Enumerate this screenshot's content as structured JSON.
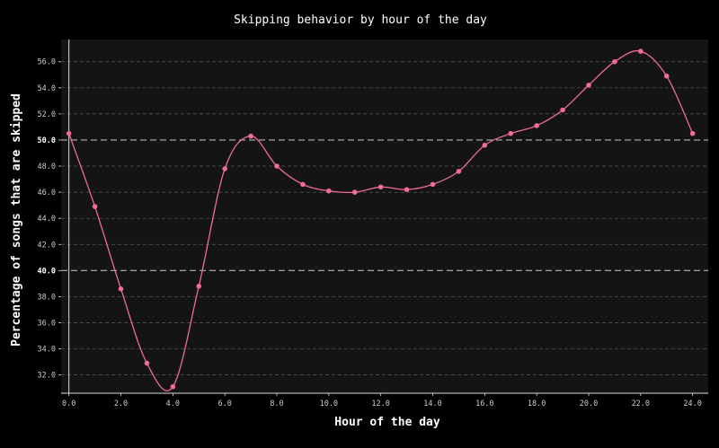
{
  "chart_data": {
    "type": "line",
    "title": "Skipping behavior by hour of the day",
    "xlabel": "Hour of the day",
    "ylabel": "Percentage of songs that are skipped",
    "xlim": [
      -0.3,
      24.6
    ],
    "ylim": [
      30.6,
      57.7
    ],
    "x_ticks": [
      0,
      2,
      4,
      6,
      8,
      10,
      12,
      14,
      16,
      18,
      20,
      22,
      24
    ],
    "x_tick_labels": [
      "0.0",
      "2.0",
      "4.0",
      "6.0",
      "8.0",
      "10.0",
      "12.0",
      "14.0",
      "16.0",
      "18.0",
      "20.0",
      "22.0",
      "24.0"
    ],
    "y_ticks": [
      32,
      34,
      36,
      38,
      40,
      42,
      44,
      46,
      48,
      50,
      52,
      54,
      56
    ],
    "y_tick_labels": [
      "32.0",
      "34.0",
      "36.0",
      "38.0",
      "40.0",
      "42.0",
      "44.0",
      "46.0",
      "48.0",
      "50.0",
      "52.0",
      "54.0",
      "56.0"
    ],
    "reference_lines_y": [
      40,
      50
    ],
    "grid": true,
    "colors": {
      "background": "#000000",
      "plot_background": "#141414",
      "series": "#f06c91",
      "grid": "#5a5a5a",
      "reference": "#b4b4b4",
      "axis": "#dddddd"
    },
    "series": [
      {
        "x": [
          0,
          1,
          2,
          3,
          4,
          5,
          6,
          7,
          8,
          9,
          10,
          11,
          12,
          13,
          14,
          15,
          16,
          17,
          18,
          19,
          20,
          21,
          22,
          23,
          24
        ],
        "values": [
          50.5,
          44.9,
          38.6,
          32.9,
          31.1,
          38.8,
          47.8,
          50.3,
          48.0,
          46.6,
          46.1,
          46.0,
          46.4,
          46.2,
          46.6,
          47.6,
          49.6,
          50.5,
          51.1,
          52.3,
          54.2,
          56.0,
          56.8,
          54.9,
          50.5
        ]
      }
    ]
  }
}
